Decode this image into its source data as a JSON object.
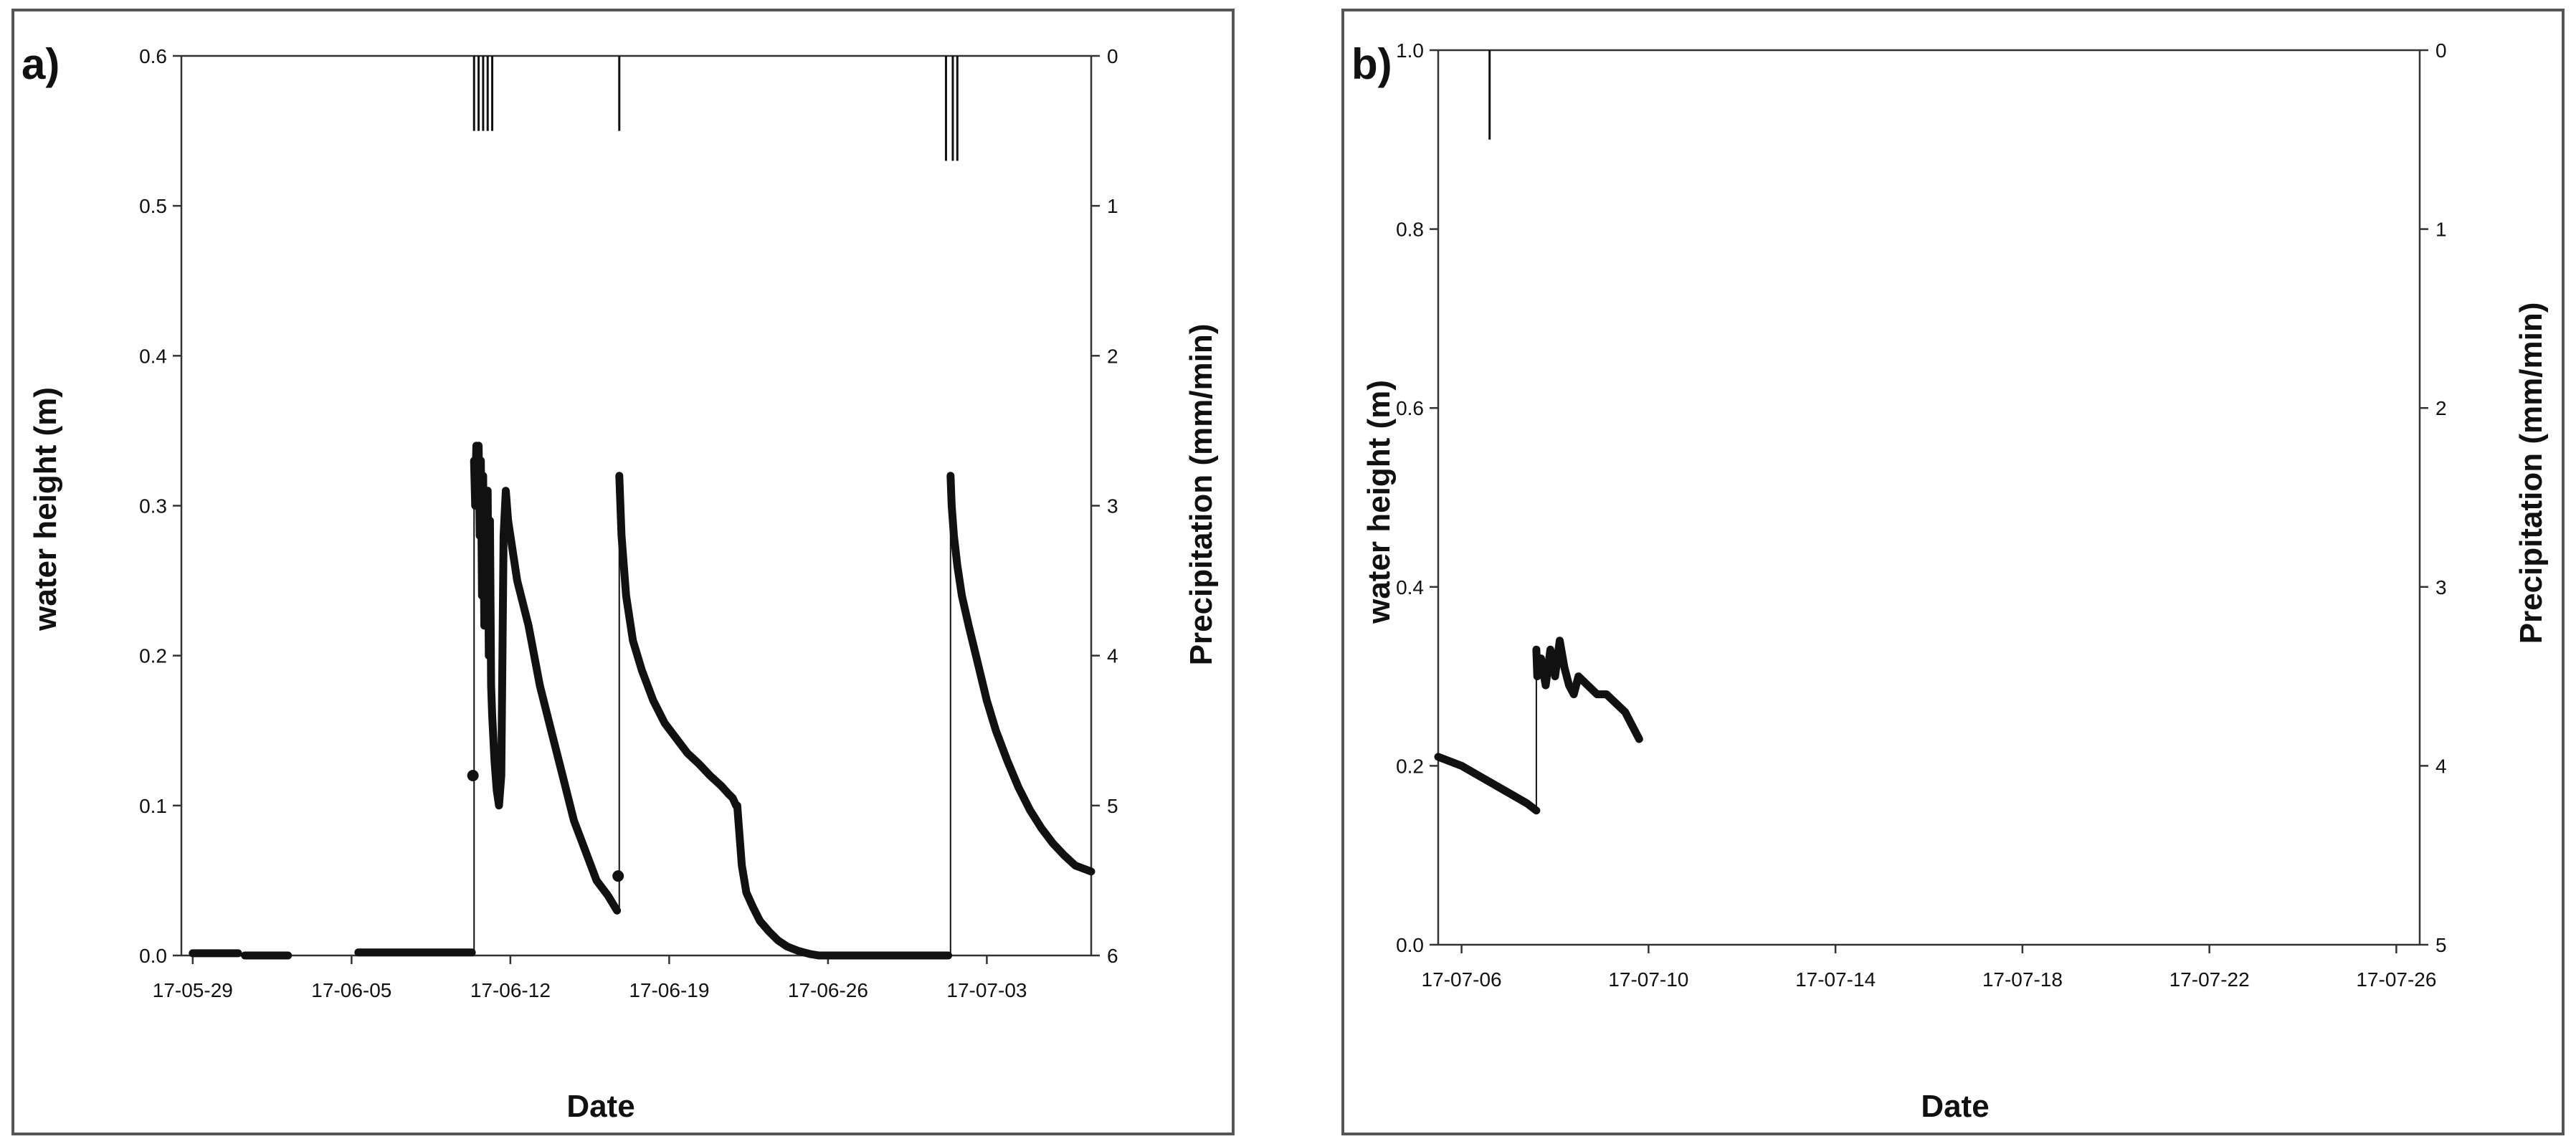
{
  "figure": {
    "xlabel": "Date",
    "ylabel_left": "water height (m)",
    "ylabel_right": "Precipitation (mm/min)"
  },
  "chart_data": [
    {
      "panel": "a)",
      "type": "scatter",
      "xlabel": "Date",
      "ylabel": "water height (m)",
      "y2label": "Precipitation (mm/min)",
      "x_ticks": [
        "17-05-29",
        "17-06-05",
        "17-06-12",
        "17-06-19",
        "17-06-26",
        "17-07-03"
      ],
      "x_tick_days": [
        0,
        7,
        14,
        21,
        28,
        35
      ],
      "xlim_days": [
        -0.5,
        39.6
      ],
      "ylim": [
        0,
        0.6
      ],
      "y_ticks": [
        "0.0",
        "0.1",
        "0.2",
        "0.3",
        "0.4",
        "0.5",
        "0.6"
      ],
      "y2lim": [
        0,
        6
      ],
      "y2_ticks": [
        "0",
        "1",
        "2",
        "3",
        "4",
        "5",
        "6"
      ],
      "water_height": [
        {
          "x": [
            0,
            0.4,
            0.9,
            1.4,
            2.0
          ],
          "y": [
            0.0015,
            0.0015,
            0.0015,
            0.0015,
            0.0015
          ]
        },
        {
          "x": [
            2.3,
            3.0,
            3.6,
            4.2
          ],
          "y": [
            0,
            0,
            0,
            0
          ]
        },
        {
          "x": [
            7.3,
            7.9,
            8.6,
            9.3,
            10.0,
            10.7,
            11.4,
            11.9,
            12.3
          ],
          "y": [
            0.002,
            0.002,
            0.002,
            0.002,
            0.002,
            0.002,
            0.002,
            0.002,
            0.002
          ]
        },
        {
          "x": [
            12.4,
            12.45,
            12.5,
            12.55,
            12.6,
            12.65,
            12.7,
            12.75,
            12.8,
            12.85,
            12.9,
            12.95,
            13.0,
            13.05,
            13.1,
            13.15,
            13.2,
            13.3,
            13.4,
            13.5,
            13.6,
            13.7,
            13.8,
            13.9
          ],
          "y": [
            0.33,
            0.3,
            0.34,
            0.31,
            0.34,
            0.28,
            0.33,
            0.24,
            0.32,
            0.22,
            0.3,
            0.25,
            0.31,
            0.2,
            0.29,
            0.18,
            0.16,
            0.13,
            0.11,
            0.1,
            0.12,
            0.28,
            0.31,
            0.29
          ]
        },
        {
          "x": [
            13.9,
            14.3,
            14.8,
            15.3,
            15.8,
            16.3,
            16.8,
            17.3,
            17.8,
            18.3,
            18.7
          ],
          "y": [
            0.29,
            0.25,
            0.22,
            0.18,
            0.15,
            0.12,
            0.09,
            0.07,
            0.05,
            0.04,
            0.03
          ]
        },
        {
          "x": [
            18.8,
            18.9,
            19.1,
            19.4,
            19.8,
            20.3,
            20.8,
            21.3,
            21.8,
            22.3,
            22.8,
            23.3,
            23.6,
            23.8,
            23.95
          ],
          "y": [
            0.32,
            0.28,
            0.24,
            0.21,
            0.19,
            0.17,
            0.155,
            0.145,
            0.135,
            0.128,
            0.12,
            0.113,
            0.108,
            0.105,
            0.1
          ]
        },
        {
          "x": [
            24.0,
            24.1,
            24.2,
            24.4,
            24.7,
            25.0,
            25.4,
            25.8,
            26.2,
            26.7,
            27.2,
            27.6
          ],
          "y": [
            0.1,
            0.08,
            0.06,
            0.042,
            0.032,
            0.023,
            0.016,
            0.01,
            0.006,
            0.003,
            0.001,
            0.0
          ]
        },
        {
          "x": [
            27.6,
            28.5,
            29.5,
            30.5,
            31.5,
            32.5,
            33.3
          ],
          "y": [
            0.0,
            0.0,
            0.0,
            0.0,
            0.0,
            0.0,
            0.0
          ]
        },
        {
          "x": [
            33.4,
            33.45,
            33.55,
            33.7,
            33.9,
            34.2,
            34.6,
            35.0,
            35.4,
            35.9,
            36.4,
            36.9,
            37.4,
            37.9,
            38.4,
            38.9,
            39.6
          ],
          "y": [
            0.32,
            0.3,
            0.28,
            0.26,
            0.24,
            0.22,
            0.195,
            0.17,
            0.15,
            0.13,
            0.112,
            0.097,
            0.085,
            0.075,
            0.067,
            0.06,
            0.056
          ]
        }
      ],
      "precip_bars": [
        {
          "x": 12.4,
          "v": 0.5
        },
        {
          "x": 12.6,
          "v": 0.5
        },
        {
          "x": 12.8,
          "v": 0.5
        },
        {
          "x": 13.0,
          "v": 0.5
        },
        {
          "x": 13.2,
          "v": 0.5
        },
        {
          "x": 18.8,
          "v": 0.5
        },
        {
          "x": 33.2,
          "v": 0.7
        },
        {
          "x": 33.5,
          "v": 0.7
        },
        {
          "x": 33.7,
          "v": 0.7
        }
      ],
      "dots": [
        {
          "x": 12.35,
          "y": 0.12
        },
        {
          "x": 18.75,
          "y": 0.053
        }
      ]
    },
    {
      "panel": "b)",
      "type": "scatter",
      "xlabel": "Date",
      "ylabel": "water height (m)",
      "y2label": "Precipitation (mm/min)",
      "x_ticks": [
        "17-07-06",
        "17-07-10",
        "17-07-14",
        "17-07-18",
        "17-07-22",
        "17-07-26"
      ],
      "x_tick_days": [
        0,
        4,
        8,
        12,
        16,
        20
      ],
      "xlim_days": [
        -0.5,
        20.5
      ],
      "ylim": [
        0,
        1.0
      ],
      "y_ticks": [
        "0.0",
        "0.2",
        "0.4",
        "0.6",
        "0.8",
        "1.0"
      ],
      "y2lim": [
        0,
        5
      ],
      "y2_ticks": [
        "0",
        "1",
        "2",
        "3",
        "4",
        "5"
      ],
      "water_height": [
        {
          "x": [
            -0.5,
            0,
            0.5,
            1.0,
            1.4,
            1.6
          ],
          "y": [
            0.21,
            0.2,
            0.185,
            0.17,
            0.158,
            0.15
          ]
        },
        {
          "x": [
            1.6,
            1.62,
            1.7,
            1.8,
            1.9,
            2.0,
            2.1,
            2.2,
            2.3,
            2.4,
            2.5,
            2.7,
            2.9,
            3.1,
            3.3,
            3.5,
            3.7,
            3.8
          ],
          "y": [
            0.33,
            0.3,
            0.32,
            0.29,
            0.33,
            0.3,
            0.34,
            0.31,
            0.29,
            0.28,
            0.3,
            0.29,
            0.28,
            0.28,
            0.27,
            0.26,
            0.24,
            0.23
          ]
        }
      ],
      "precip_bars": [
        {
          "x": 0.6,
          "v": 0.5
        }
      ],
      "dots": []
    }
  ]
}
